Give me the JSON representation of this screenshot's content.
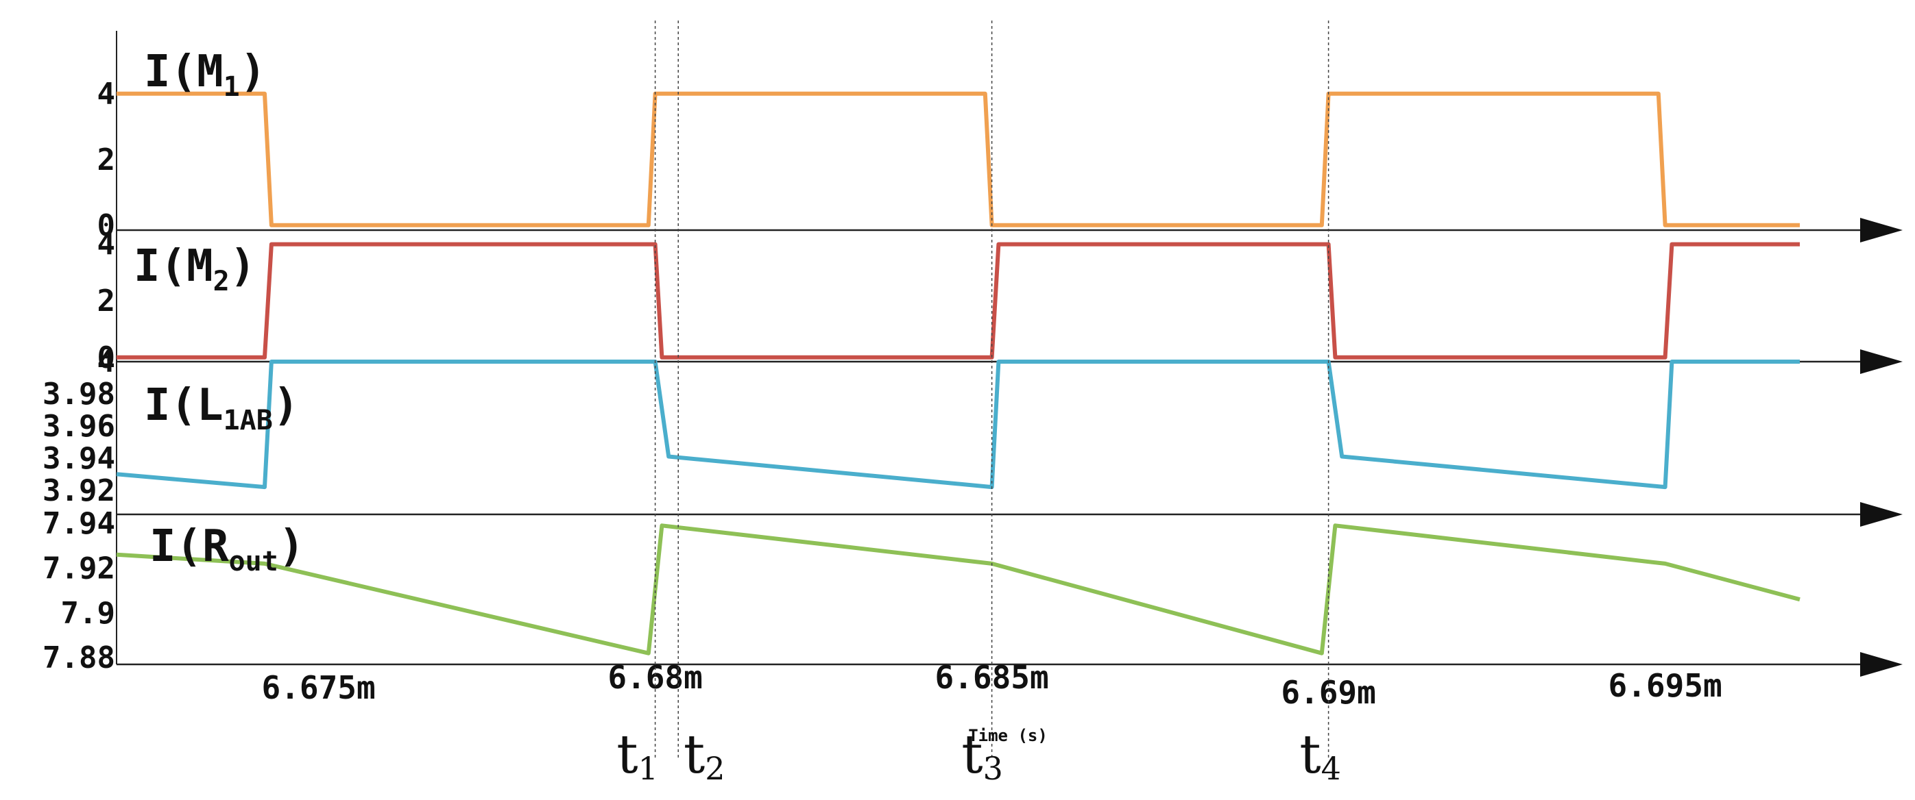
{
  "chart_data": {
    "type": "line",
    "x_label": "Time (s)",
    "x_ticks": [
      {
        "value": 6.675,
        "label": "6.675m"
      },
      {
        "value": 6.68,
        "label": "6.68m"
      },
      {
        "value": 6.685,
        "label": "6.685m"
      },
      {
        "value": 6.69,
        "label": "6.69m"
      },
      {
        "value": 6.695,
        "label": "6.695m"
      }
    ],
    "xlim": [
      6.672,
      6.697
    ],
    "markers": [
      {
        "x": 6.68,
        "label": "t",
        "sub": "1"
      },
      {
        "x": 6.6802,
        "label": "t",
        "sub": "2"
      },
      {
        "x": 6.685,
        "label": "t",
        "sub": "3"
      },
      {
        "x": 6.69,
        "label": "t",
        "sub": "4"
      }
    ],
    "panels": [
      {
        "name": "I(M1)",
        "label_main": "I(M",
        "label_sub": "1",
        "label_end": ")",
        "color": "#f0a050",
        "ylim": [
          -0.15,
          5.6
        ],
        "y_ticks": [
          {
            "value": 4,
            "label": "4"
          },
          {
            "value": 2,
            "label": "2"
          },
          {
            "value": 0,
            "label": "0"
          }
        ],
        "points": [
          [
            6.672,
            4
          ],
          [
            6.6742,
            4
          ],
          [
            6.6743,
            0
          ],
          [
            6.6799,
            0
          ],
          [
            6.68,
            4
          ],
          [
            6.6849,
            4
          ],
          [
            6.685,
            0
          ],
          [
            6.6899,
            0
          ],
          [
            6.69,
            4
          ],
          [
            6.6949,
            4
          ],
          [
            6.695,
            0
          ],
          [
            6.697,
            0
          ]
        ]
      },
      {
        "name": "I(M2)",
        "label_main": "I(M",
        "label_sub": "2",
        "label_end": ")",
        "color": "#c85048",
        "ylim": [
          -0.15,
          4.5
        ],
        "y_ticks": [
          {
            "value": 4,
            "label": "4"
          },
          {
            "value": 2,
            "label": "2"
          },
          {
            "value": 0,
            "label": "0"
          }
        ],
        "points": [
          [
            6.672,
            0
          ],
          [
            6.6742,
            0
          ],
          [
            6.6743,
            4
          ],
          [
            6.68,
            4
          ],
          [
            6.6801,
            0
          ],
          [
            6.685,
            0
          ],
          [
            6.6851,
            4
          ],
          [
            6.69,
            4
          ],
          [
            6.6901,
            0
          ],
          [
            6.695,
            0
          ],
          [
            6.6951,
            4
          ],
          [
            6.697,
            4
          ]
        ]
      },
      {
        "name": "I(L1AB)",
        "label_main": "I(L",
        "label_sub": "1AB",
        "label_end": ")",
        "color": "#4aaecc",
        "ylim": [
          3.905,
          4.0
        ],
        "y_ticks": [
          {
            "value": 4.0,
            "label": "4"
          },
          {
            "value": 3.98,
            "label": "3.98"
          },
          {
            "value": 3.96,
            "label": "3.96"
          },
          {
            "value": 3.94,
            "label": "3.94"
          },
          {
            "value": 3.92,
            "label": "3.92"
          }
        ],
        "points": [
          [
            6.672,
            3.93
          ],
          [
            6.6742,
            3.922
          ],
          [
            6.6743,
            4.0
          ],
          [
            6.68,
            4.0
          ],
          [
            6.6802,
            3.941
          ],
          [
            6.685,
            3.922
          ],
          [
            6.6851,
            4.0
          ],
          [
            6.69,
            4.0
          ],
          [
            6.6902,
            3.941
          ],
          [
            6.695,
            3.922
          ],
          [
            6.6951,
            4.0
          ],
          [
            6.697,
            4.0
          ]
        ]
      },
      {
        "name": "I(Rout)",
        "label_main": "I(R",
        "label_sub": "out",
        "label_end": ")",
        "color": "#8ec056",
        "ylim": [
          7.877,
          7.944
        ],
        "y_ticks": [
          {
            "value": 7.94,
            "label": "7.94"
          },
          {
            "value": 7.92,
            "label": "7.92"
          },
          {
            "value": 7.9,
            "label": "7.9"
          },
          {
            "value": 7.88,
            "label": "7.88"
          }
        ],
        "points": [
          [
            6.672,
            7.926
          ],
          [
            6.6742,
            7.922
          ],
          [
            6.6799,
            7.882
          ],
          [
            6.6801,
            7.939
          ],
          [
            6.685,
            7.922
          ],
          [
            6.6899,
            7.882
          ],
          [
            6.6901,
            7.939
          ],
          [
            6.695,
            7.922
          ],
          [
            6.697,
            7.906
          ]
        ]
      }
    ]
  }
}
